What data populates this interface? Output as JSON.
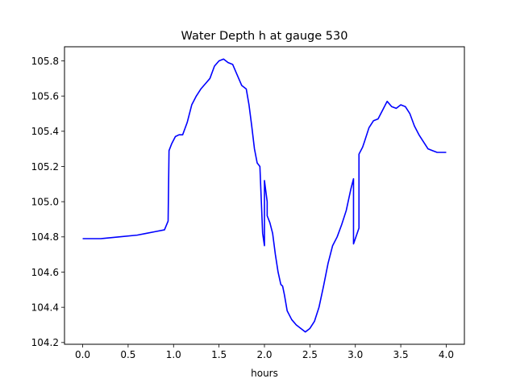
{
  "chart_data": {
    "type": "line",
    "title": "Water Depth h at gauge 530",
    "xlabel": "hours",
    "ylabel": "",
    "xlim": [
      -0.2,
      4.2
    ],
    "ylim": [
      104.19,
      105.88
    ],
    "x_ticks": [
      0.0,
      0.5,
      1.0,
      1.5,
      2.0,
      2.5,
      3.0,
      3.5,
      4.0
    ],
    "x_tick_labels": [
      "0.0",
      "0.5",
      "1.0",
      "1.5",
      "2.0",
      "2.5",
      "3.0",
      "3.5",
      "4.0"
    ],
    "y_ticks": [
      104.2,
      104.4,
      104.6,
      104.8,
      105.0,
      105.2,
      105.4,
      105.6,
      105.8
    ],
    "y_tick_labels": [
      "104.2",
      "104.4",
      "104.6",
      "104.8",
      "105.0",
      "105.2",
      "105.4",
      "105.6",
      "105.8"
    ],
    "grid": false,
    "legend": "none",
    "series": [
      {
        "color": "#0000ff",
        "x": [
          0.0,
          0.2,
          0.4,
          0.6,
          0.7,
          0.8,
          0.9,
          0.94,
          0.95,
          0.98,
          1.02,
          1.06,
          1.1,
          1.15,
          1.2,
          1.25,
          1.3,
          1.35,
          1.4,
          1.45,
          1.5,
          1.55,
          1.6,
          1.65,
          1.7,
          1.75,
          1.8,
          1.83,
          1.86,
          1.89,
          1.92,
          1.95,
          1.98,
          2.0,
          2.0,
          2.03,
          2.03,
          2.06,
          2.09,
          2.12,
          2.15,
          2.18,
          2.2,
          2.22,
          2.25,
          2.3,
          2.35,
          2.4,
          2.45,
          2.5,
          2.55,
          2.6,
          2.65,
          2.7,
          2.75,
          2.8,
          2.85,
          2.9,
          2.95,
          2.98,
          2.98,
          3.04,
          3.04,
          3.08,
          3.1,
          3.15,
          3.2,
          3.25,
          3.3,
          3.35,
          3.4,
          3.45,
          3.5,
          3.55,
          3.6,
          3.65,
          3.7,
          3.75,
          3.8,
          3.85,
          3.9,
          3.95,
          4.0
        ],
        "y": [
          104.79,
          104.79,
          104.8,
          104.81,
          104.82,
          104.83,
          104.84,
          104.89,
          105.29,
          105.33,
          105.37,
          105.38,
          105.38,
          105.45,
          105.55,
          105.6,
          105.64,
          105.67,
          105.7,
          105.77,
          105.8,
          105.81,
          105.79,
          105.78,
          105.72,
          105.66,
          105.64,
          105.55,
          105.43,
          105.3,
          105.22,
          105.2,
          104.82,
          104.75,
          105.12,
          105.0,
          104.92,
          104.88,
          104.82,
          104.7,
          104.6,
          104.53,
          104.52,
          104.47,
          104.38,
          104.33,
          104.3,
          104.28,
          104.26,
          104.28,
          104.32,
          104.4,
          104.52,
          104.65,
          104.75,
          104.8,
          104.87,
          104.95,
          105.07,
          105.13,
          104.76,
          104.85,
          105.27,
          105.31,
          105.34,
          105.42,
          105.46,
          105.47,
          105.52,
          105.57,
          105.54,
          105.53,
          105.55,
          105.54,
          105.5,
          105.43,
          105.38,
          105.34,
          105.3,
          105.29,
          105.28,
          105.28,
          105.28
        ]
      }
    ]
  }
}
